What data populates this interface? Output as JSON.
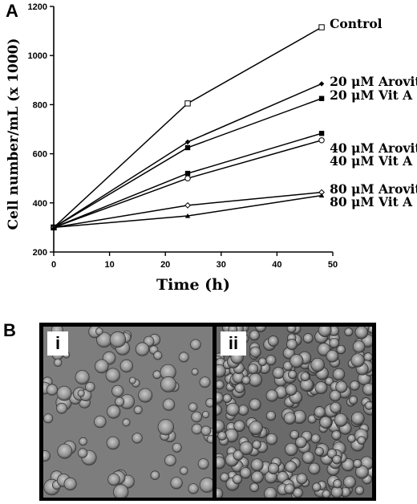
{
  "panels": {
    "a_label": "A",
    "b_label": "B"
  },
  "chart_data": {
    "type": "line",
    "xlabel": "Time (h)",
    "ylabel": "Cell number/mL (x 1000)",
    "xlim": [
      0,
      50
    ],
    "ylim": [
      200,
      1200
    ],
    "xticks": [
      0,
      10,
      20,
      30,
      40,
      50
    ],
    "yticks": [
      200,
      400,
      600,
      800,
      1000,
      1200
    ],
    "grid": false,
    "legend": "direct labels at line ends",
    "x": [
      0,
      24,
      48
    ],
    "series": [
      {
        "name": "Control",
        "values": [
          300,
          805,
          1115
        ],
        "marker": "open-square"
      },
      {
        "name": "20 μM Arovit",
        "values": [
          300,
          648,
          885
        ],
        "marker": "filled-diamond"
      },
      {
        "name": "20 μM Vit A",
        "values": [
          300,
          625,
          825
        ],
        "marker": "filled-square"
      },
      {
        "name": "40 μM Arovit",
        "values": [
          300,
          520,
          683
        ],
        "marker": "filled-square"
      },
      {
        "name": "40 μM Vit A",
        "values": [
          300,
          500,
          655
        ],
        "marker": "open-circle"
      },
      {
        "name": "80 μM Arovit",
        "values": [
          300,
          390,
          443
        ],
        "marker": "open-diamond"
      },
      {
        "name": "80 μM Vit A",
        "values": [
          300,
          347,
          430
        ],
        "marker": "filled-triangle"
      }
    ]
  },
  "micrographs": [
    {
      "label": "i"
    },
    {
      "label": "ii"
    }
  ]
}
